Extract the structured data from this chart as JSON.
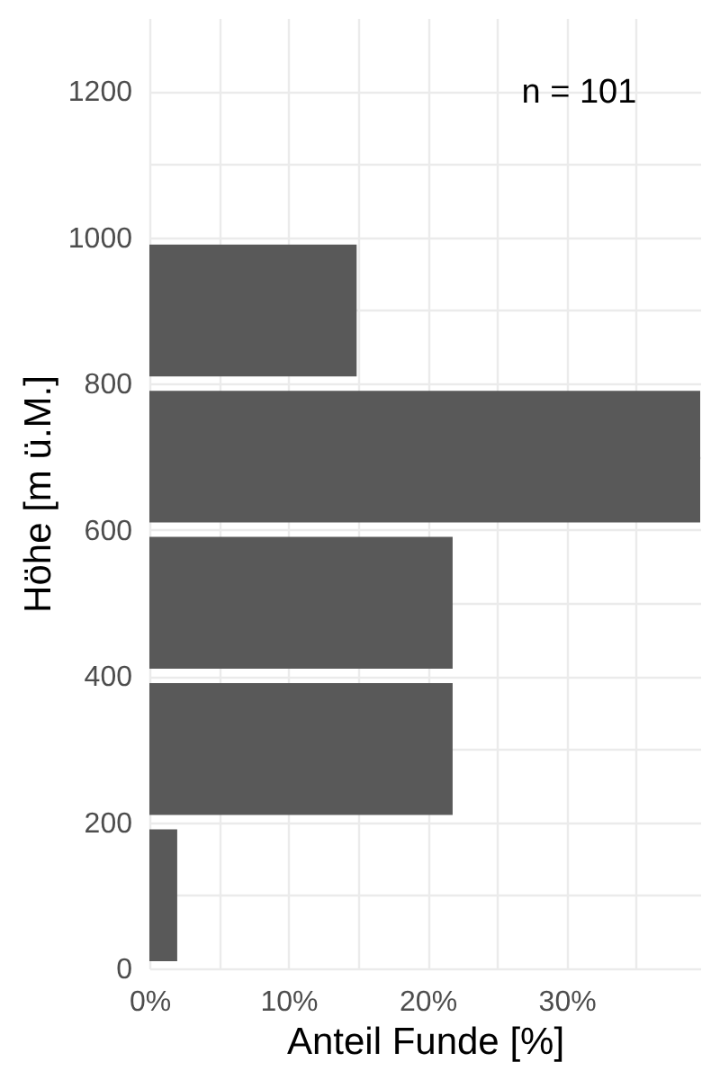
{
  "chart_data": {
    "type": "histogram",
    "orientation": "horizontal",
    "xlabel": "Anteil Funde [%]",
    "ylabel": "Höhe [m ü.M.]",
    "annotations": [
      "n = 101"
    ],
    "bins": [
      0,
      200,
      400,
      600,
      800,
      1000
    ],
    "values": [
      2.0,
      21.8,
      21.8,
      39.6,
      14.9
    ],
    "color": "#595959",
    "xlim": [
      0,
      39.6
    ],
    "xticks": [
      {
        "value": 0,
        "label": "0%"
      },
      {
        "value": 5,
        "label": null
      },
      {
        "value": 10,
        "label": "10%"
      },
      {
        "value": 15,
        "label": null
      },
      {
        "value": 20,
        "label": "20%"
      },
      {
        "value": 25,
        "label": null
      },
      {
        "value": 30,
        "label": "30%"
      },
      {
        "value": 35,
        "label": null
      }
    ],
    "ylim": [
      0,
      1300
    ],
    "yticks": [
      0,
      {
        "value": 100,
        "label": null
      },
      200,
      {
        "value": 300,
        "label": null
      },
      400,
      {
        "value": 500,
        "label": null
      },
      600,
      {
        "value": 700,
        "label": null
      },
      800,
      {
        "value": 900,
        "label": null
      },
      1000,
      {
        "value": 1100,
        "label": null
      },
      1200
    ],
    "grid": true
  }
}
